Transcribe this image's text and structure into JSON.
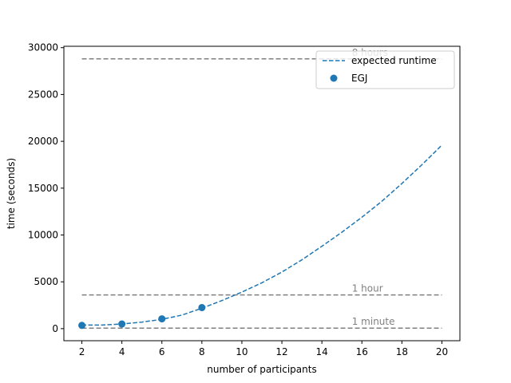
{
  "chart_data": {
    "type": "line",
    "xlabel": "number of participants",
    "ylabel": "time (seconds)",
    "xlim": [
      1.1,
      20.9
    ],
    "ylim": [
      -1287,
      30147
    ],
    "xticks": [
      2,
      4,
      6,
      8,
      10,
      12,
      14,
      16,
      18,
      20
    ],
    "yticks": [
      0,
      5000,
      10000,
      15000,
      20000,
      25000,
      30000
    ],
    "grid": false,
    "legend_position": "top-right",
    "series": [
      {
        "name": "expected runtime",
        "style": "dashed-line",
        "color": "#1f77b4",
        "x": [
          2,
          3,
          4,
          5,
          6,
          7,
          8,
          9,
          10,
          11,
          12,
          13,
          14,
          15,
          16,
          17,
          18,
          19,
          20
        ],
        "y": [
          380,
          380,
          500,
          700,
          1000,
          1450,
          2180,
          3000,
          3900,
          4900,
          6050,
          7350,
          8800,
          10300,
          11900,
          13600,
          15500,
          17500,
          19600
        ]
      },
      {
        "name": "EGJ",
        "style": "markers",
        "color": "#1f77b4",
        "x": [
          2,
          4,
          6,
          8
        ],
        "y": [
          350,
          500,
          1050,
          2250
        ]
      }
    ],
    "reference_lines": [
      {
        "label": "1 minute",
        "y": 60,
        "color": "#808080"
      },
      {
        "label": "1 hour",
        "y": 3600,
        "color": "#808080"
      },
      {
        "label": "8 hours",
        "y": 28800,
        "color": "#808080"
      }
    ]
  }
}
